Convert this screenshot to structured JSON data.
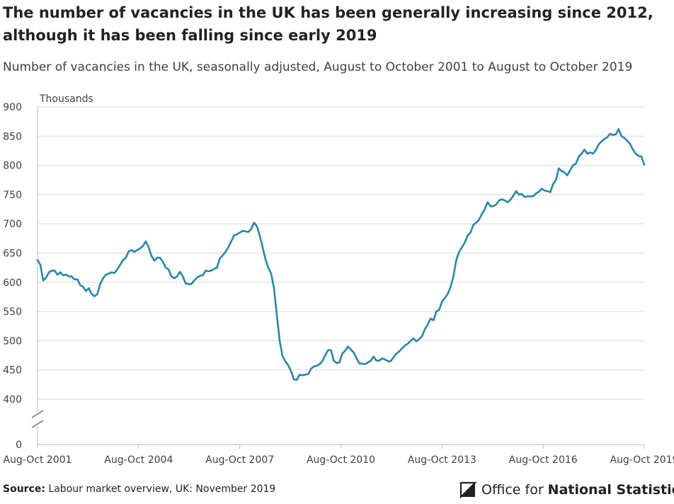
{
  "title": "The number of vacancies in the UK has been generally increasing since 2012, although it has been falling since early 2019",
  "subtitle": "Number of vacancies in the UK, seasonally adjusted, August to October 2001 to August to October 2019",
  "footer": {
    "source_label": "Source:",
    "source_text": "Labour market overview, UK: November 2019",
    "logo_regular": "Office for",
    "logo_bold": "National Statistics"
  },
  "colors": {
    "line": "#2a86a6",
    "grid": "#d9d9d9",
    "axis": "#bbbbbb",
    "text": "#414042"
  },
  "chart_data": {
    "type": "line",
    "title": "The number of vacancies in the UK has been generally increasing since 2012, although it has been falling since early 2019",
    "ylabel": "Thousands",
    "xlabel": "",
    "y_ticks": [
      0,
      400,
      450,
      500,
      550,
      600,
      650,
      700,
      750,
      800,
      850,
      900
    ],
    "y_range": [
      400,
      900
    ],
    "y_axis_break": true,
    "x_tick_labels": [
      "Aug-Oct 2001",
      "Aug-Oct 2004",
      "Aug-Oct 2007",
      "Aug-Oct 2010",
      "Aug-Oct 2013",
      "Aug-Oct 2016",
      "Aug-Oct 2019"
    ],
    "x_start": "Aug-Oct 2001",
    "x_end": "Aug-Oct 2019",
    "grid": true,
    "series": [
      {
        "name": "",
        "values": [
          638,
          630,
          603,
          608,
          617,
          620,
          620,
          613,
          617,
          612,
          613,
          610,
          610,
          605,
          605,
          595,
          592,
          585,
          590,
          580,
          576,
          580,
          597,
          607,
          613,
          615,
          617,
          616,
          622,
          630,
          638,
          642,
          653,
          655,
          652,
          655,
          658,
          662,
          670,
          660,
          645,
          637,
          642,
          642,
          635,
          625,
          622,
          610,
          607,
          610,
          618,
          610,
          598,
          597,
          597,
          603,
          608,
          611,
          612,
          620,
          619,
          620,
          623,
          625,
          641,
          646,
          652,
          660,
          670,
          680,
          682,
          685,
          688,
          687,
          686,
          691,
          702,
          696,
          680,
          660,
          640,
          625,
          615,
          590,
          545,
          500,
          474,
          465,
          458,
          448,
          434,
          433,
          442,
          441,
          442,
          443,
          452,
          456,
          457,
          460,
          465,
          475,
          484,
          484,
          466,
          462,
          463,
          478,
          483,
          490,
          485,
          480,
          470,
          461,
          461,
          460,
          463,
          466,
          473,
          466,
          466,
          470,
          468,
          465,
          465,
          472,
          478,
          482,
          487,
          492,
          495,
          500,
          504,
          499,
          503,
          508,
          520,
          528,
          538,
          535,
          550,
          553,
          567,
          573,
          580,
          592,
          610,
          638,
          652,
          660,
          668,
          680,
          685,
          698,
          702,
          707,
          717,
          725,
          737,
          730,
          730,
          733,
          740,
          742,
          740,
          737,
          741,
          748,
          756,
          750,
          751,
          746,
          747,
          747,
          747,
          752,
          755,
          760,
          757,
          756,
          754,
          768,
          775,
          795,
          790,
          788,
          783,
          792,
          800,
          803,
          815,
          820,
          827,
          820,
          822,
          820,
          826,
          836,
          841,
          845,
          848,
          854,
          852,
          853,
          862,
          850,
          847,
          842,
          837,
          827,
          820,
          816,
          815,
          801
        ]
      }
    ]
  }
}
